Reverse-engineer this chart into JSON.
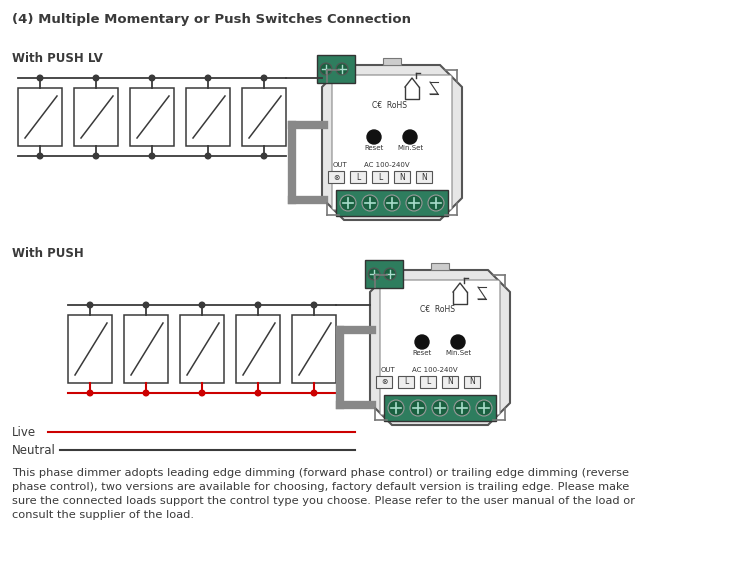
{
  "title": "(4) Multiple Momentary or Push Switches Connection",
  "subtitle1": "With PUSH LV",
  "subtitle2": "With PUSH",
  "label_live": "Live",
  "label_neutral": "Neutral",
  "footer": "This phase dimmer adopts leading edge dimming (forward phase control) or trailing edge dimming (reverse\nphase control), two versions are available for choosing, factory default version is trailing edge. Please make\nsure the connected loads support the control type you choose. Please refer to the user manual of the load or\nconsult the supplier of the load.",
  "bg_color": "#ffffff",
  "line_color": "#3a3a3a",
  "red_color": "#cc0000",
  "green_color": "#2e7d5e",
  "title_fontsize": 9.5,
  "body_fontsize": 8.5,
  "footer_fontsize": 8.2
}
